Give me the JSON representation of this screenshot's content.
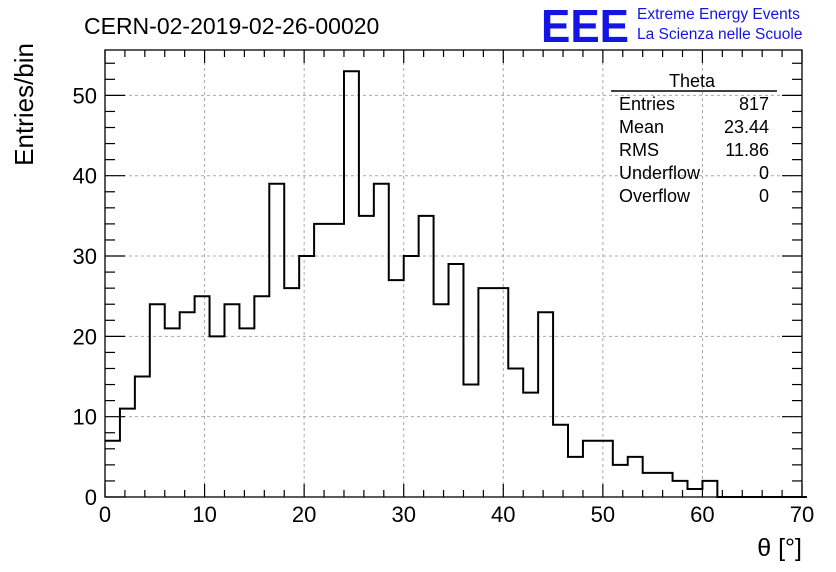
{
  "header": {
    "run_title": "CERN-02-2019-02-26-00020",
    "logo": {
      "text": "EEE",
      "line1": "Extreme Energy Events",
      "line2": "La Scienza nelle Scuole",
      "color": "#1414e6"
    }
  },
  "stats_box": {
    "title": "Theta",
    "rows": [
      {
        "label": "Entries",
        "value": "817"
      },
      {
        "label": "Mean",
        "value": "23.44"
      },
      {
        "label": "RMS",
        "value": "11.86"
      },
      {
        "label": "Underflow",
        "value": "0"
      },
      {
        "label": "Overflow",
        "value": "0"
      }
    ]
  },
  "chart_data": {
    "type": "bar",
    "histogram": true,
    "title": "CERN-02-2019-02-26-00020",
    "xlabel": "θ [°]",
    "ylabel": "Entries/bin",
    "xlim": [
      0,
      70
    ],
    "ylim": [
      0,
      55.65
    ],
    "grid": true,
    "bin_width": 1.5,
    "bin_edges_start": 0,
    "x_ticks": [
      "0",
      "10",
      "20",
      "30",
      "40",
      "50",
      "60",
      "70"
    ],
    "y_ticks": [
      "0",
      "10",
      "20",
      "30",
      "40",
      "50"
    ],
    "x_tick_values": [
      0,
      10,
      20,
      30,
      40,
      50,
      60,
      70
    ],
    "y_tick_values": [
      0,
      10,
      20,
      30,
      40,
      50
    ],
    "values": [
      7,
      11,
      15,
      24,
      21,
      23,
      25,
      20,
      24,
      21,
      25,
      39,
      26,
      30,
      34,
      34,
      53,
      35,
      39,
      27,
      30,
      35,
      24,
      29,
      14,
      26,
      26,
      16,
      13,
      23,
      9,
      5,
      7,
      7,
      4,
      5,
      3,
      3,
      2,
      1,
      2,
      0,
      0,
      0,
      0,
      0,
      0
    ],
    "line_color": "#000000"
  }
}
